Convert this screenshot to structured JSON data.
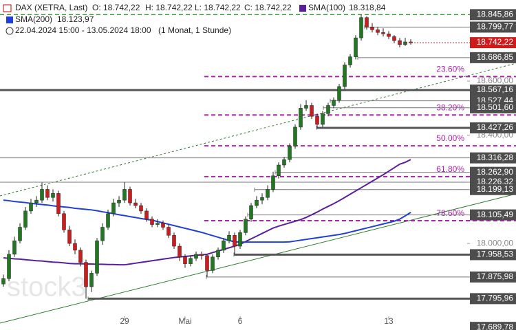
{
  "chart_data": {
    "type": "candlestick",
    "title": "DAX (XETRA, Last)",
    "quote": {
      "o": "O: 18.742,22",
      "h": "H: 18.742,22",
      "l": "L: 18.742,22",
      "c": "C: 18.742,22"
    },
    "range": "22.04.2024 15:00 - 13.05.2024 18:00",
    "period": "(1 Monat, 1 Stunde)",
    "watermark": "stock3",
    "up_color": "#1f7a1f",
    "down_color": "#d11a1a",
    "categories": [
      null,
      null,
      null,
      null,
      null,
      null,
      null,
      null,
      null,
      null,
      null,
      null,
      null,
      null,
      null,
      null,
      null,
      null,
      null,
      null,
      null,
      null,
      "29",
      null,
      null,
      null,
      null,
      null,
      null,
      null,
      null,
      null,
      null,
      "Mai",
      null,
      null,
      null,
      null,
      null,
      null,
      null,
      null,
      null,
      "6",
      null,
      null,
      null,
      null,
      null,
      null,
      null,
      null,
      null,
      null,
      null,
      null,
      null,
      null,
      null,
      null,
      null,
      null,
      null,
      null,
      null,
      null,
      null,
      null,
      null,
      null,
      "13",
      null,
      null,
      null,
      null
    ],
    "ohlc": [
      [
        17850,
        17885,
        17840,
        17870
      ],
      [
        17870,
        17975,
        17860,
        17960
      ],
      [
        17960,
        18025,
        17950,
        18010
      ],
      [
        18010,
        18075,
        18000,
        18060
      ],
      [
        18060,
        18135,
        18050,
        18120
      ],
      [
        18120,
        18165,
        18110,
        18150
      ],
      [
        18150,
        18175,
        18135,
        18160
      ],
      [
        18160,
        18225,
        18150,
        18200
      ],
      [
        18200,
        18215,
        18160,
        18170
      ],
      [
        18170,
        18200,
        18155,
        18185
      ],
      [
        18185,
        18195,
        18100,
        18110
      ],
      [
        18110,
        18120,
        18040,
        18050
      ],
      [
        18050,
        18065,
        17990,
        18000
      ],
      [
        18000,
        18015,
        17960,
        17975
      ],
      [
        17975,
        17985,
        17915,
        17930
      ],
      [
        17930,
        17940,
        17796,
        17840
      ],
      [
        17840,
        17900,
        17820,
        17890
      ],
      [
        17890,
        18020,
        17880,
        18010
      ],
      [
        18010,
        18075,
        17995,
        18060
      ],
      [
        18060,
        18125,
        18050,
        18110
      ],
      [
        18110,
        18165,
        18100,
        18150
      ],
      [
        18150,
        18175,
        18135,
        18160
      ],
      [
        18160,
        18226,
        18150,
        18200
      ],
      [
        18200,
        18210,
        18140,
        18150
      ],
      [
        18150,
        18165,
        18130,
        18140
      ],
      [
        18140,
        18150,
        18110,
        18120
      ],
      [
        18120,
        18130,
        18080,
        18090
      ],
      [
        18090,
        18100,
        18060,
        18070
      ],
      [
        18070,
        18090,
        18060,
        18075
      ],
      [
        18075,
        18085,
        18050,
        18060
      ],
      [
        18060,
        18070,
        18020,
        18030
      ],
      [
        18030,
        18040,
        17980,
        17990
      ],
      [
        17990,
        18000,
        17935,
        17950
      ],
      [
        17950,
        17960,
        17910,
        17925
      ],
      [
        17925,
        17955,
        17915,
        17945
      ],
      [
        17945,
        17970,
        17935,
        17960
      ],
      [
        17960,
        17970,
        17940,
        17955
      ],
      [
        17955,
        17960,
        17876,
        17900
      ],
      [
        17900,
        17960,
        17890,
        17950
      ],
      [
        17950,
        17985,
        17940,
        17975
      ],
      [
        17975,
        18020,
        17965,
        18010
      ],
      [
        18010,
        18045,
        18000,
        18030
      ],
      [
        18030,
        18040,
        17960,
        17990
      ],
      [
        17990,
        18050,
        17980,
        18040
      ],
      [
        18040,
        18100,
        18030,
        18090
      ],
      [
        18090,
        18150,
        18080,
        18140
      ],
      [
        18140,
        18175,
        18130,
        18160
      ],
      [
        18160,
        18185,
        18145,
        18170
      ],
      [
        18170,
        18215,
        18160,
        18200
      ],
      [
        18200,
        18265,
        18190,
        18250
      ],
      [
        18250,
        18300,
        18240,
        18290
      ],
      [
        18290,
        18320,
        18280,
        18310
      ],
      [
        18310,
        18370,
        18300,
        18360
      ],
      [
        18360,
        18440,
        18350,
        18430
      ],
      [
        18430,
        18515,
        18420,
        18500
      ],
      [
        18500,
        18530,
        18490,
        18510
      ],
      [
        18510,
        18520,
        18460,
        18470
      ],
      [
        18470,
        18480,
        18427,
        18440
      ],
      [
        18440,
        18490,
        18430,
        18480
      ],
      [
        18480,
        18520,
        18470,
        18510
      ],
      [
        18510,
        18540,
        18500,
        18530
      ],
      [
        18530,
        18590,
        18520,
        18580
      ],
      [
        18580,
        18670,
        18570,
        18660
      ],
      [
        18660,
        18700,
        18650,
        18690
      ],
      [
        18690,
        18770,
        18680,
        18760
      ],
      [
        18760,
        18846,
        18750,
        18835
      ],
      [
        18835,
        18840,
        18790,
        18800
      ],
      [
        18800,
        18815,
        18780,
        18790
      ],
      [
        18790,
        18800,
        18770,
        18780
      ],
      [
        18780,
        18795,
        18765,
        18775
      ],
      [
        18775,
        18785,
        18755,
        18765
      ],
      [
        18765,
        18770,
        18740,
        18750
      ],
      [
        18750,
        18760,
        18725,
        18735
      ],
      [
        18735,
        18760,
        18730,
        18745
      ],
      [
        18745,
        18755,
        18735,
        18742.22
      ]
    ],
    "series": [
      {
        "name": "SMA(100)",
        "value_label": "18.318,84",
        "color": "#5a1e9c",
        "values": [
          17947,
          17945,
          17943,
          17942,
          17940,
          17938,
          17936,
          17935,
          17933,
          17931,
          17930,
          17928,
          17926,
          17925,
          17925,
          17924,
          17924,
          17923,
          17923,
          17922,
          17922,
          17921,
          17921,
          17924,
          17927,
          17930,
          17933,
          17936,
          17939,
          17942,
          17945,
          17948,
          17950,
          17952,
          17954,
          17956,
          17958,
          17960,
          17966,
          17972,
          17978,
          17984,
          17990,
          17997,
          18007,
          18017,
          18027,
          18037,
          18047,
          18057,
          18064,
          18070,
          18076,
          18082,
          18088,
          18096,
          18106,
          18116,
          18127,
          18137,
          18147,
          18158,
          18170,
          18182,
          18194,
          18206,
          18218,
          18230,
          18242,
          18254,
          18267,
          18280,
          18293,
          18300,
          18310
        ]
      },
      {
        "name": "SMA(200)",
        "value_label": "18.123,97",
        "color": "#1f3fd6",
        "values": [
          18160,
          18158,
          18155,
          18153,
          18151,
          18148,
          18146,
          18144,
          18142,
          18139,
          18137,
          18135,
          18133,
          18130,
          18128,
          18126,
          18124,
          18121,
          18117,
          18114,
          18110,
          18106,
          18103,
          18099,
          18096,
          18092,
          18089,
          18086,
          18081,
          18076,
          18071,
          18066,
          18061,
          18056,
          18051,
          18046,
          18041,
          18035,
          18029,
          18023,
          18017,
          18011,
          18006,
          18005,
          18005,
          18005,
          18005,
          18005,
          18005,
          18005,
          18005,
          18005,
          18006,
          18009,
          18012,
          18015,
          18018,
          18021,
          18024,
          18027,
          18030,
          18033,
          18037,
          18042,
          18047,
          18052,
          18057,
          18062,
          18067,
          18072,
          18077,
          18082,
          18090,
          18102,
          18115
        ]
      }
    ],
    "ylim": [
      17680,
      18900
    ],
    "yticks": [
      {
        "value": 18000,
        "label": "18.000,00"
      },
      {
        "value": 18400,
        "label": "18.400,00"
      },
      {
        "value": 18600,
        "label": "18.600,00"
      }
    ],
    "levels": [
      {
        "value": 18845.86,
        "label": "18.845,86"
      },
      {
        "value": 18799.77,
        "label": "18.799,77"
      },
      {
        "value": 18686.85,
        "label": "18.686,85"
      },
      {
        "value": 18567.16,
        "label": "18.567,16"
      },
      {
        "value": 18527.44,
        "label": "18.527,44"
      },
      {
        "value": 18501.6,
        "label": "18.501,60"
      },
      {
        "value": 18427.26,
        "label": "18.427,26"
      },
      {
        "value": 18316.28,
        "label": "18.316,28"
      },
      {
        "value": 18262.9,
        "label": "18.262,90"
      },
      {
        "value": 18226.32,
        "label": "18.226,32"
      },
      {
        "value": 18199.13,
        "label": "18.199,13"
      },
      {
        "value": 18105.49,
        "label": "18.105,49"
      },
      {
        "value": 17958.53,
        "label": "17.958,53"
      },
      {
        "value": 17875.98,
        "label": "17.875,98"
      },
      {
        "value": 17795.96,
        "label": "17.795,96"
      },
      {
        "value": 17689.78,
        "label": "17.689,78"
      }
    ],
    "last": {
      "value": 18742.22,
      "label": "18.742,22"
    },
    "fib_color": "#b020b0",
    "fib": [
      {
        "value": 18617,
        "label": "23.60%"
      },
      {
        "value": 18475,
        "label": "38.20%"
      },
      {
        "value": 18361,
        "label": "50.00%"
      },
      {
        "value": 18247,
        "label": "61.80%"
      },
      {
        "value": 18084,
        "label": "78.60%"
      }
    ]
  }
}
